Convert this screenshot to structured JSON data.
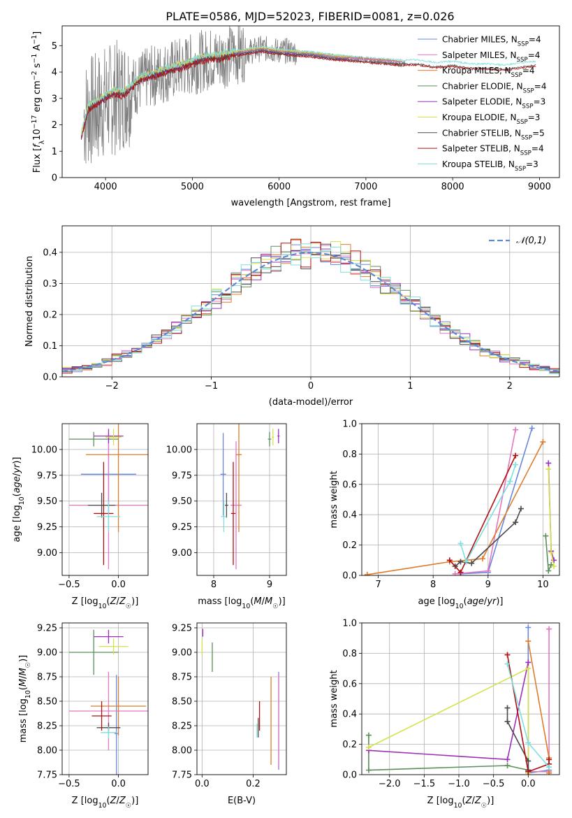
{
  "figure_title": "PLATE=0586, MJD=52023, FIBERID=0081, z=0.026",
  "chart_data": [
    {
      "id": "spectrum",
      "type": "line",
      "title": "PLATE=0586, MJD=52023, FIBERID=0081, z=0.026",
      "xlabel": "wavelength [Angstrom, rest frame]",
      "ylabel": "Flux [f_λ10^-17 erg cm^-2 s^-1 A^-1]",
      "xlim": [
        3500,
        9230
      ],
      "ylim": [
        0,
        5.75
      ],
      "xticks": [
        4000,
        5000,
        6000,
        7000,
        8000,
        9000
      ],
      "yticks": [
        0,
        1,
        2,
        3,
        4,
        5
      ],
      "grid": false,
      "legend_position": "upper right",
      "data_series": {
        "name": "data",
        "color": "#808080",
        "x": [
          3750,
          3800,
          3900,
          4000,
          4100,
          4200,
          4300,
          4400,
          4500,
          4600,
          4700,
          4800,
          4900,
          5000,
          5100,
          5200,
          5300,
          5400,
          5500,
          5600,
          5700,
          5800,
          5900,
          6000,
          6100,
          6200,
          6300,
          6400,
          6500,
          6600,
          6700,
          6800,
          6900,
          7000,
          7100,
          7200,
          7300,
          7400,
          7450
        ],
        "y": [
          2.3,
          2.5,
          2.6,
          2.9,
          3.0,
          3.2,
          3.4,
          3.6,
          3.8,
          3.9,
          4.0,
          4.1,
          4.2,
          4.3,
          4.4,
          4.5,
          4.5,
          4.6,
          4.7,
          4.8,
          4.8,
          4.9,
          4.85,
          4.8,
          4.8,
          4.75,
          4.7,
          4.65,
          4.6,
          4.6,
          4.55,
          4.5,
          4.5,
          4.45,
          4.4,
          4.4,
          4.35,
          4.3,
          4.3
        ]
      },
      "model_x": [
        3720,
        3800,
        3900,
        4000,
        4100,
        4200,
        4300,
        4400,
        4500,
        4600,
        4700,
        4800,
        4900,
        5000,
        5100,
        5200,
        5300,
        5400,
        5500,
        5600,
        5700,
        5800,
        5900,
        6000,
        6200,
        6400,
        6600,
        6800,
        7000,
        7200,
        7400,
        7600,
        7800,
        8000,
        8200,
        8400,
        8600,
        8800,
        8960
      ],
      "series": [
        {
          "name": "Chabrier MILES, N_SSP=4",
          "color": "#6688dd",
          "offset": 0.0
        },
        {
          "name": "Salpeter MILES, N_SSP=4",
          "color": "#e377c2",
          "offset": -0.02
        },
        {
          "name": "Kroupa MILES, N_SSP=4",
          "color": "#e07b2a",
          "offset": 0.02
        },
        {
          "name": "Chabrier ELODIE, N_SSP=4",
          "color": "#5a8f5a",
          "offset": -0.05
        },
        {
          "name": "Salpeter ELODIE, N_SSP=3",
          "color": "#9b30b8",
          "offset": -0.08
        },
        {
          "name": "Kroupa ELODIE, N_SSP=3",
          "color": "#d6e24a",
          "offset": 0.04
        },
        {
          "name": "Chabrier STELIB, N_SSP=5",
          "color": "#4a4a4a",
          "offset": -0.1
        },
        {
          "name": "Salpeter STELIB, N_SSP=4",
          "color": "#b01010",
          "offset": -0.14
        },
        {
          "name": "Kroupa STELIB, N_SSP=3",
          "color": "#7fdede",
          "offset": 0.06
        }
      ],
      "model_y": [
        1.6,
        2.7,
        2.9,
        3.1,
        3.3,
        3.2,
        3.5,
        3.8,
        3.9,
        4.0,
        4.1,
        4.2,
        4.3,
        4.4,
        4.55,
        4.6,
        4.6,
        4.7,
        4.75,
        4.8,
        4.85,
        4.9,
        4.85,
        4.8,
        4.75,
        4.7,
        4.6,
        4.55,
        4.5,
        4.45,
        4.4,
        4.4,
        4.3,
        4.35,
        4.25,
        4.25,
        4.2,
        4.3,
        4.35
      ]
    },
    {
      "id": "residuals",
      "type": "histogram",
      "xlabel": "(data-model)/error",
      "ylabel": "Normed distribution",
      "xlim": [
        -2.5,
        2.5
      ],
      "ylim": [
        0,
        0.485
      ],
      "xticks": [
        -2,
        -1,
        0,
        1,
        2
      ],
      "yticks": [
        0.0,
        0.1,
        0.2,
        0.3,
        0.4
      ],
      "grid": true,
      "legend": [
        "𝒩(0,1)"
      ],
      "legend_position": "upper right",
      "bin_width": 0.1,
      "reference_curve": {
        "name": "𝒩(0,1)",
        "color": "#5b8ad6",
        "style": "dashed"
      }
    },
    {
      "id": "age-vs-Z",
      "type": "errorbar",
      "xlabel": "Z [log10(Z/Z☉)]",
      "ylabel": "age  [log10(age/yr)]",
      "xlim": [
        -0.57,
        0.3
      ],
      "ylim": [
        8.78,
        10.25
      ],
      "xticks": [
        -0.5,
        0.0
      ],
      "yticks": [
        9.0,
        9.25,
        9.5,
        9.75,
        10.0
      ],
      "grid": true,
      "points": [
        {
          "x": -0.1,
          "xerr": 0.28,
          "y": 9.76,
          "yerr": 0.4,
          "color": "#6688dd"
        },
        {
          "x": -0.1,
          "xerr": 0.4,
          "y": 9.46,
          "yerr": 0.62,
          "color": "#e377c2"
        },
        {
          "x": 0.0,
          "xerr": 0.33,
          "y": 9.95,
          "yerr": 0.75,
          "color": "#e07b2a"
        },
        {
          "x": -0.25,
          "xerr": 0.25,
          "y": 10.1,
          "yerr": 0.07,
          "color": "#5a8f5a"
        },
        {
          "x": -0.1,
          "xerr": 0.15,
          "y": 10.13,
          "yerr": 0.07,
          "color": "#9b30b8"
        },
        {
          "x": -0.05,
          "xerr": 0.08,
          "y": 10.12,
          "yerr": 0.08,
          "color": "#d6e24a"
        },
        {
          "x": -0.17,
          "xerr": 0.14,
          "y": 9.46,
          "yerr": 0.12,
          "color": "#4a4a4a"
        },
        {
          "x": -0.15,
          "xerr": 0.1,
          "y": 9.38,
          "yerr": 0.5,
          "color": "#b01010"
        },
        {
          "x": -0.1,
          "xerr": 0.12,
          "y": 9.35,
          "yerr": 0.15,
          "color": "#7fdede"
        }
      ]
    },
    {
      "id": "age-vs-mass",
      "type": "errorbar",
      "xlabel": "mass [log10(M/M☉)]",
      "ylabel": "",
      "xlim": [
        7.7,
        9.3
      ],
      "ylim": [
        8.78,
        10.25
      ],
      "xticks": [
        8,
        9
      ],
      "yticks": [
        9.0,
        9.25,
        9.5,
        9.75,
        10.0
      ],
      "grid": true,
      "points": [
        {
          "x": 8.17,
          "xerr": 0.05,
          "y": 9.76,
          "yerr": 0.4,
          "color": "#6688dd"
        },
        {
          "x": 8.4,
          "xerr": 0.1,
          "y": 9.46,
          "yerr": 0.62,
          "color": "#e377c2"
        },
        {
          "x": 8.45,
          "xerr": 0.05,
          "y": 9.95,
          "yerr": 0.75,
          "color": "#e07b2a"
        },
        {
          "x": 9.0,
          "xerr": 0.03,
          "y": 10.1,
          "yerr": 0.07,
          "color": "#5a8f5a"
        },
        {
          "x": 9.16,
          "xerr": 0.02,
          "y": 10.13,
          "yerr": 0.07,
          "color": "#9b30b8"
        },
        {
          "x": 9.06,
          "xerr": 0.02,
          "y": 10.12,
          "yerr": 0.08,
          "color": "#d6e24a"
        },
        {
          "x": 8.23,
          "xerr": 0.03,
          "y": 9.46,
          "yerr": 0.12,
          "color": "#4a4a4a"
        },
        {
          "x": 8.35,
          "xerr": 0.04,
          "y": 9.38,
          "yerr": 0.5,
          "color": "#b01010"
        },
        {
          "x": 8.18,
          "xerr": 0.05,
          "y": 9.35,
          "yerr": 0.15,
          "color": "#7fdede"
        }
      ]
    },
    {
      "id": "mass-weight-vs-age",
      "type": "line",
      "xlabel": "age  [log10(age/yr)]",
      "ylabel": "mass weight",
      "xlim": [
        6.7,
        10.3
      ],
      "ylim": [
        0,
        1.0
      ],
      "xticks": [
        7,
        8,
        9,
        10
      ],
      "yticks": [
        0.0,
        0.2,
        0.4,
        0.6,
        0.8,
        1.0
      ],
      "grid": true,
      "series": [
        {
          "name": "Chabrier MILES",
          "color": "#6688dd",
          "x": [
            8.5,
            9.0,
            9.8
          ],
          "y": [
            0.01,
            0.02,
            0.97
          ]
        },
        {
          "name": "Salpeter MILES",
          "color": "#e377c2",
          "x": [
            8.4,
            9.0,
            9.5
          ],
          "y": [
            0.01,
            0.03,
            0.96
          ]
        },
        {
          "name": "Kroupa MILES",
          "color": "#e07b2a",
          "x": [
            6.8,
            8.3,
            8.9,
            10.0
          ],
          "y": [
            0.005,
            0.09,
            0.11,
            0.88
          ]
        },
        {
          "name": "Chabrier ELODIE",
          "color": "#5a8f5a",
          "x": [
            10.05,
            10.1,
            10.15
          ],
          "y": [
            0.26,
            0.03,
            0.07
          ]
        },
        {
          "name": "Salpeter ELODIE",
          "color": "#9b30b8",
          "x": [
            10.1,
            10.15,
            10.2
          ],
          "y": [
            0.74,
            0.16,
            0.1
          ]
        },
        {
          "name": "Kroupa ELODIE",
          "color": "#d6e24a",
          "x": [
            10.1,
            10.15,
            10.2
          ],
          "y": [
            0.7,
            0.15,
            0.06
          ]
        },
        {
          "name": "Chabrier STELIB",
          "color": "#4a4a4a",
          "x": [
            8.4,
            8.5,
            8.7,
            9.5,
            9.6
          ],
          "y": [
            0.06,
            0.09,
            0.08,
            0.35,
            0.44
          ]
        },
        {
          "name": "Salpeter STELIB",
          "color": "#b01010",
          "x": [
            8.3,
            8.5,
            9.5
          ],
          "y": [
            0.1,
            0.02,
            0.79
          ]
        },
        {
          "name": "Kroupa STELIB",
          "color": "#7fdede",
          "x": [
            8.5,
            8.6,
            9.4,
            9.5
          ],
          "y": [
            0.21,
            0.09,
            0.62,
            0.73
          ]
        }
      ]
    },
    {
      "id": "mass-vs-Z",
      "type": "errorbar",
      "xlabel": "Z [log10(Z/Z☉)]",
      "ylabel": "mass [log10(M/M☉)]",
      "xlim": [
        -0.57,
        0.3
      ],
      "ylim": [
        7.75,
        9.3
      ],
      "xticks": [
        -0.5,
        0.0
      ],
      "yticks": [
        7.75,
        8.0,
        8.25,
        8.5,
        8.75,
        9.0,
        9.25
      ],
      "grid": true,
      "points": [
        {
          "x": -0.02,
          "xerr": 0.02,
          "y": 8.17,
          "yerr": 0.6,
          "color": "#6688dd"
        },
        {
          "x": -0.1,
          "xerr": 0.4,
          "y": 8.4,
          "yerr": 0.4,
          "color": "#e377c2"
        },
        {
          "x": 0.0,
          "xerr": 0.28,
          "y": 8.45,
          "yerr": 0.3,
          "color": "#e07b2a"
        },
        {
          "x": -0.25,
          "xerr": 0.25,
          "y": 9.0,
          "yerr": 0.23,
          "color": "#5a8f5a"
        },
        {
          "x": -0.1,
          "xerr": 0.15,
          "y": 9.16,
          "yerr": 0.07,
          "color": "#9b30b8"
        },
        {
          "x": -0.05,
          "xerr": 0.15,
          "y": 9.06,
          "yerr": 0.08,
          "color": "#d6e24a"
        },
        {
          "x": -0.1,
          "xerr": 0.12,
          "y": 8.23,
          "yerr": 0.05,
          "color": "#4a4a4a"
        },
        {
          "x": -0.17,
          "xerr": 0.1,
          "y": 8.35,
          "yerr": 0.15,
          "color": "#b01010"
        },
        {
          "x": -0.1,
          "xerr": 0.08,
          "y": 8.18,
          "yerr": 0.06,
          "color": "#7fdede"
        }
      ]
    },
    {
      "id": "mass-vs-ebv",
      "type": "errorbar",
      "xlabel": "E(B-V)",
      "ylabel": "",
      "xlim": [
        -0.02,
        0.33
      ],
      "ylim": [
        7.75,
        9.3
      ],
      "xticks": [
        0.0,
        0.2
      ],
      "yticks": [
        7.75,
        8.0,
        8.25,
        8.5,
        8.75,
        9.0,
        9.25
      ],
      "grid": true,
      "points": [
        {
          "x": 0.3,
          "xerr": 0.0,
          "y": 8.3,
          "yerr": 0.5,
          "color": "#6688dd"
        },
        {
          "x": 0.3,
          "xerr": 0.0,
          "y": 8.3,
          "yerr": 0.48,
          "color": "#e377c2"
        },
        {
          "x": 0.27,
          "xerr": 0.0,
          "y": 8.3,
          "yerr": 0.45,
          "color": "#e07b2a"
        },
        {
          "x": 0.04,
          "xerr": 0.0,
          "y": 8.95,
          "yerr": 0.15,
          "color": "#5a8f5a"
        },
        {
          "x": 0.003,
          "xerr": 0.0,
          "y": 9.2,
          "yerr": 0.04,
          "color": "#9b30b8"
        },
        {
          "x": 0.0,
          "xerr": 0.0,
          "y": 9.05,
          "yerr": 0.08,
          "color": "#d6e24a"
        },
        {
          "x": 0.22,
          "xerr": 0.0,
          "y": 8.23,
          "yerr": 0.1,
          "color": "#4a4a4a"
        },
        {
          "x": 0.225,
          "xerr": 0.0,
          "y": 8.35,
          "yerr": 0.15,
          "color": "#b01010"
        },
        {
          "x": 0.215,
          "xerr": 0.0,
          "y": 8.2,
          "yerr": 0.07,
          "color": "#7fdede"
        }
      ]
    },
    {
      "id": "mass-weight-vs-Z",
      "type": "line",
      "xlabel": "Z [log10(Z/Z☉)]",
      "ylabel": "mass weight",
      "xlim": [
        -2.4,
        0.45
      ],
      "ylim": [
        0,
        1.0
      ],
      "xticks": [
        -2.0,
        -1.5,
        -1.0,
        -0.5,
        0.0
      ],
      "yticks": [
        0.0,
        0.2,
        0.4,
        0.6,
        0.8,
        1.0
      ],
      "grid": true,
      "series": [
        {
          "name": "Chabrier MILES",
          "color": "#6688dd",
          "x": [
            0.0,
            0.0,
            0.3
          ],
          "y": [
            0.97,
            0.01,
            0.03
          ]
        },
        {
          "name": "Salpeter MILES",
          "color": "#e377c2",
          "x": [
            0.3,
            0.3,
            0.0
          ],
          "y": [
            0.96,
            0.02,
            0.02
          ]
        },
        {
          "name": "Kroupa MILES",
          "color": "#e07b2a",
          "x": [
            0.0,
            0.3,
            0.3
          ],
          "y": [
            0.88,
            0.11,
            0.01
          ]
        },
        {
          "name": "Chabrier ELODIE",
          "color": "#5a8f5a",
          "x": [
            -2.3,
            -2.3,
            -0.3,
            0.0
          ],
          "y": [
            0.26,
            0.03,
            0.06,
            0.03
          ]
        },
        {
          "name": "Salpeter ELODIE",
          "color": "#9b30b8",
          "x": [
            -2.3,
            -0.3,
            0.0,
            0.0
          ],
          "y": [
            0.16,
            0.1,
            0.74,
            0.02
          ]
        },
        {
          "name": "Kroupa ELODIE",
          "color": "#d6e24a",
          "x": [
            -2.3,
            0.0,
            0.0
          ],
          "y": [
            0.18,
            0.7,
            0.01
          ]
        },
        {
          "name": "Chabrier STELIB",
          "color": "#4a4a4a",
          "x": [
            -0.3,
            -0.3,
            0.0,
            0.0
          ],
          "y": [
            0.44,
            0.35,
            0.09,
            0.03
          ]
        },
        {
          "name": "Salpeter STELIB",
          "color": "#b01010",
          "x": [
            -0.3,
            0.0,
            0.3,
            0.3
          ],
          "y": [
            0.79,
            0.02,
            0.07,
            0.1
          ]
        },
        {
          "name": "Kroupa STELIB",
          "color": "#7fdede",
          "x": [
            -0.3,
            0.0,
            0.3
          ],
          "y": [
            0.73,
            0.21,
            0.05
          ]
        }
      ]
    }
  ]
}
